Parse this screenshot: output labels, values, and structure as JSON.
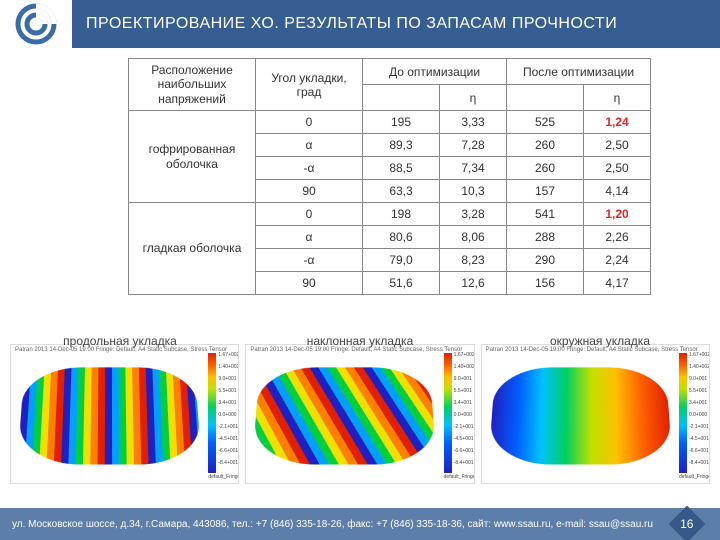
{
  "colors": {
    "header_bg": "#375e93",
    "footer_bg": "#5d7ea8",
    "pagenum_bg": "#37598a",
    "logo_color": "#3b6ca8",
    "highlight_red": "#e02020",
    "table_border": "#888"
  },
  "header": {
    "title": "ПРОЕКТИРОВАНИЕ ХО. РЕЗУЛЬТАТЫ ПО ЗАПАСАМ ПРОЧНОСТИ"
  },
  "table": {
    "head": {
      "location": "Расположение наибольших напряжений",
      "angle": "Угол укладки, град",
      "before": "До оптимизации",
      "after": "После оптимизации",
      "eta": "η"
    },
    "groups": [
      {
        "label": "гофрированная оболочка",
        "rows": [
          {
            "angle": "0",
            "v1": "195",
            "e1": "3,33",
            "v2": "525",
            "e2": "1,24",
            "e2_red": true
          },
          {
            "angle": "α",
            "v1": "89,3",
            "e1": "7,28",
            "v2": "260",
            "e2": "2,50"
          },
          {
            "angle": "-α",
            "v1": "88,5",
            "e1": "7,34",
            "v2": "260",
            "e2": "2,50"
          },
          {
            "angle": "90",
            "v1": "63,3",
            "e1": "10,3",
            "v2": "157",
            "e2": "4,14"
          }
        ]
      },
      {
        "label": "гладкая оболочка",
        "rows": [
          {
            "angle": "0",
            "v1": "198",
            "e1": "3,28",
            "v2": "541",
            "e2": "1,20",
            "e2_red": true
          },
          {
            "angle": "α",
            "v1": "80,6",
            "e1": "8,06",
            "v2": "288",
            "e2": "2,26"
          },
          {
            "angle": "-α",
            "v1": "79,0",
            "e1": "8,23",
            "v2": "290",
            "e2": "2,24"
          },
          {
            "angle": "90",
            "v1": "51,6",
            "e1": "12,6",
            "v2": "156",
            "e2": "4,17"
          }
        ]
      }
    ]
  },
  "captions": {
    "c1": "продольная укладка",
    "c2": "наклонная укладка",
    "c3": "окружная укладка"
  },
  "panels": {
    "top_caption": "Patran 2013 14-Dec-05 19:00  Fringe: Default, A4 Static Subcase, Stress Tensor",
    "legend_label": "default_Fringe",
    "legend_max": "1.07+002",
    "legend_min": "-8.41+002",
    "ticks": [
      {
        "pos": 0,
        "txt": "1.67+002"
      },
      {
        "pos": 10,
        "txt": "1.40+002"
      },
      {
        "pos": 20,
        "txt": "9.0+001"
      },
      {
        "pos": 30,
        "txt": "5.5+001"
      },
      {
        "pos": 40,
        "txt": "3.4+001"
      },
      {
        "pos": 50,
        "txt": "0.0+000"
      },
      {
        "pos": 60,
        "txt": "-2.1+001"
      },
      {
        "pos": 70,
        "txt": "-4.5+001"
      },
      {
        "pos": 80,
        "txt": "-6.6+001"
      },
      {
        "pos": 90,
        "txt": "-8.4+001"
      }
    ]
  },
  "footer": {
    "address": "ул. Московское шоссе, д.34, г.Самара, 443086, тел.: +7 (846) 335-18-26, факс: +7 (846) 335-18-36, сайт: www.ssau.ru, e-mail: ssau@ssau.ru",
    "page": "16"
  }
}
